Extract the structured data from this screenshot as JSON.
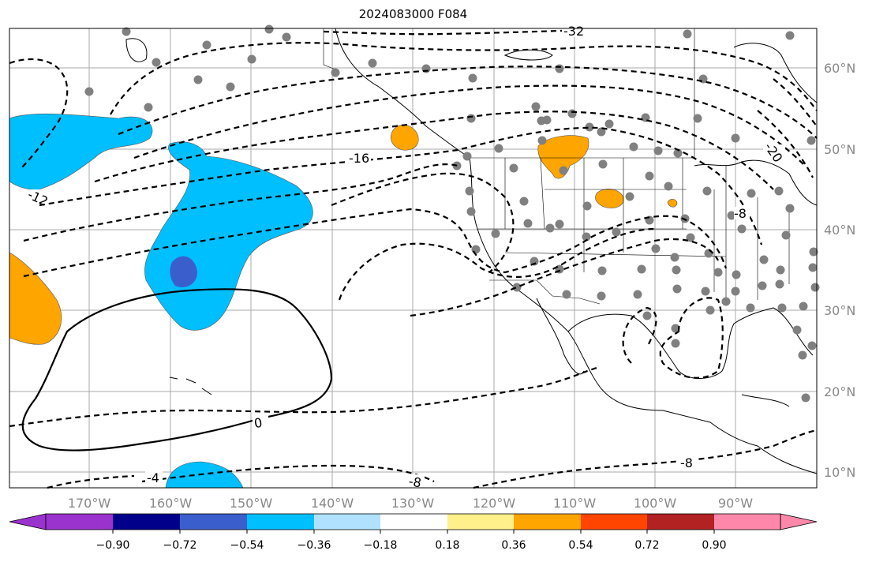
{
  "title": "2024083000 F084",
  "lon_labels": [
    "170°W",
    "160°W",
    "150°W",
    "140°W",
    "130°W",
    "120°W",
    "110°W",
    "100°W",
    "90°W"
  ],
  "lat_labels": [
    "60°N",
    "50°N",
    "40°N",
    "30°N",
    "20°N",
    "10°N"
  ],
  "contour_labels": [
    "-32",
    "-16",
    "-12",
    "-20",
    "-8",
    "0",
    "-4",
    "-8",
    "-8"
  ],
  "colorbar": {
    "ticks": [
      "−0.90",
      "−0.72",
      "−0.54",
      "−0.36",
      "−0.18",
      "0.18",
      "0.36",
      "0.54",
      "0.72",
      "0.90"
    ],
    "colors": [
      "#9a32cd",
      "#00008b",
      "#3a5fcd",
      "#00bfff",
      "#b0e2ff",
      "#ffffff",
      "#fff08c",
      "#ffa500",
      "#ff4500",
      "#b22222",
      "#ff88aa"
    ]
  }
}
